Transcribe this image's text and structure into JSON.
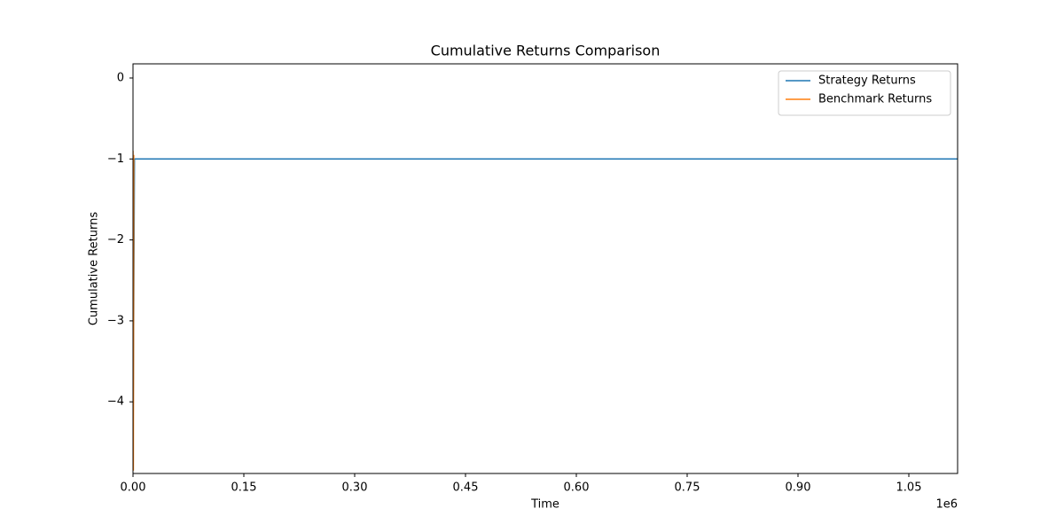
{
  "chart_data": {
    "type": "line",
    "title": "Cumulative Returns Comparison",
    "x_label": "Time",
    "y_label": "Cumulative Returns",
    "x_offset_label": "1e6",
    "xlim": [
      0,
      1116000
    ],
    "ylim": [
      -4.885,
      0.175
    ],
    "xticks": [
      {
        "value": 0,
        "label": "0.00"
      },
      {
        "value": 150000,
        "label": "0.15"
      },
      {
        "value": 300000,
        "label": "0.30"
      },
      {
        "value": 450000,
        "label": "0.45"
      },
      {
        "value": 600000,
        "label": "0.60"
      },
      {
        "value": 750000,
        "label": "0.75"
      },
      {
        "value": 900000,
        "label": "0.90"
      },
      {
        "value": 1050000,
        "label": "1.05"
      }
    ],
    "yticks": [
      0,
      {
        "value": -1,
        "label": "−1"
      },
      {
        "value": -2,
        "label": "−2"
      },
      {
        "value": -3,
        "label": "−3"
      },
      {
        "value": -4,
        "label": "−4"
      }
    ],
    "legend": "upper right",
    "series": [
      {
        "name": "Strategy Returns",
        "color": "#1f77b4",
        "x": [
          0,
          2000,
          1116000
        ],
        "values": [
          -4.8,
          -1,
          -1
        ]
      },
      {
        "name": "Benchmark Returns",
        "color": "#ff7f0e",
        "x": [
          0,
          500,
          1000
        ],
        "values": [
          -0.9,
          -4.85,
          -0.95
        ]
      }
    ]
  }
}
